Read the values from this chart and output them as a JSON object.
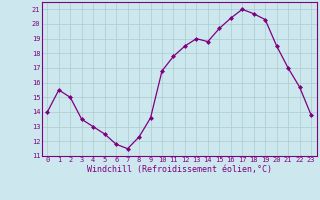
{
  "x": [
    0,
    1,
    2,
    3,
    4,
    5,
    6,
    7,
    8,
    9,
    10,
    11,
    12,
    13,
    14,
    15,
    16,
    17,
    18,
    19,
    20,
    21,
    22,
    23
  ],
  "y": [
    14.0,
    15.5,
    15.0,
    13.5,
    13.0,
    12.5,
    11.8,
    11.5,
    12.3,
    13.6,
    16.8,
    17.8,
    18.5,
    19.0,
    18.8,
    19.7,
    20.4,
    21.0,
    20.7,
    20.3,
    18.5,
    17.0,
    15.7,
    13.8
  ],
  "line_color": "#800080",
  "marker": "D",
  "marker_size": 2.0,
  "bg_color": "#cce8ee",
  "grid_color": "#aacccc",
  "xlabel": "Windchill (Refroidissement éolien,°C)",
  "ylim": [
    11,
    21.5
  ],
  "xlim": [
    -0.5,
    23.5
  ],
  "yticks": [
    11,
    12,
    13,
    14,
    15,
    16,
    17,
    18,
    19,
    20,
    21
  ],
  "xticks": [
    0,
    1,
    2,
    3,
    4,
    5,
    6,
    7,
    8,
    9,
    10,
    11,
    12,
    13,
    14,
    15,
    16,
    17,
    18,
    19,
    20,
    21,
    22,
    23
  ],
  "tick_color": "#800080",
  "label_color": "#800080",
  "tick_fontsize": 5.0,
  "xlabel_fontsize": 6.0,
  "linewidth": 0.9
}
